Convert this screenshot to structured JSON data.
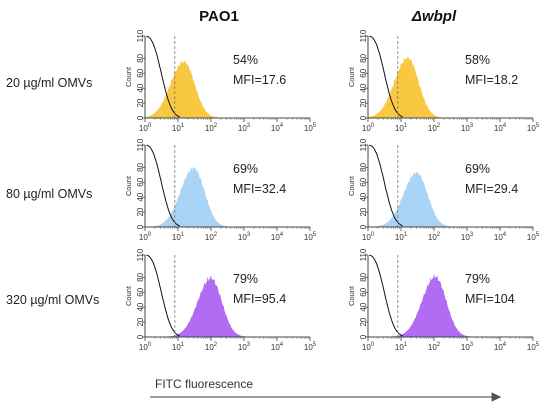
{
  "figure": {
    "columns": [
      "PAO1",
      "Δwbpl"
    ],
    "rows": [
      "20 µg/ml OMVs",
      "80 µg/ml OMVs",
      "320 µg/ml OMVs"
    ],
    "x_axis_label": "FITC fluorescence",
    "y_axis_title": "Count"
  },
  "chart_data": [
    {
      "type": "area",
      "column": "PAO1",
      "row": "20 µg/ml OMVs",
      "annotation_percent": "54%",
      "annotation_mfi": "MFI=17.6",
      "x_scale": "log",
      "xlim": [
        1,
        100000
      ],
      "ylim": [
        0,
        110
      ],
      "yticks": [
        0,
        20,
        40,
        60,
        80,
        110
      ],
      "series": [
        {
          "color": "#f9c842",
          "peak_x": 15,
          "peak_y": 75
        }
      ],
      "gate_x": 8
    },
    {
      "type": "area",
      "column": "Δwbpl",
      "row": "20 µg/ml OMVs",
      "annotation_percent": "58%",
      "annotation_mfi": "MFI=18.2",
      "x_scale": "log",
      "xlim": [
        1,
        100000
      ],
      "ylim": [
        0,
        110
      ],
      "yticks": [
        0,
        20,
        40,
        60,
        80,
        110
      ],
      "series": [
        {
          "color": "#f9c842",
          "peak_x": 16,
          "peak_y": 80
        }
      ],
      "gate_x": 8
    },
    {
      "type": "area",
      "column": "PAO1",
      "row": "80 µg/ml OMVs",
      "annotation_percent": "69%",
      "annotation_mfi": "MFI=32.4",
      "x_scale": "log",
      "xlim": [
        1,
        100000
      ],
      "ylim": [
        0,
        110
      ],
      "yticks": [
        0,
        20,
        40,
        60,
        80,
        110
      ],
      "series": [
        {
          "color": "#a9d4f5",
          "peak_x": 30,
          "peak_y": 78
        }
      ],
      "gate_x": 8
    },
    {
      "type": "area",
      "column": "Δwbpl",
      "row": "80 µg/ml OMVs",
      "annotation_percent": "69%",
      "annotation_mfi": "MFI=29.4",
      "x_scale": "log",
      "xlim": [
        1,
        100000
      ],
      "ylim": [
        0,
        110
      ],
      "yticks": [
        0,
        20,
        40,
        60,
        80,
        110
      ],
      "series": [
        {
          "color": "#a9d4f5",
          "peak_x": 30,
          "peak_y": 72
        }
      ],
      "gate_x": 8
    },
    {
      "type": "area",
      "column": "PAO1",
      "row": "320 µg/ml OMVs",
      "annotation_percent": "79%",
      "annotation_mfi": "MFI=95.4",
      "x_scale": "log",
      "xlim": [
        1,
        100000
      ],
      "ylim": [
        0,
        110
      ],
      "yticks": [
        0,
        20,
        40,
        60,
        80,
        110
      ],
      "series": [
        {
          "color": "#b06cf2",
          "peak_x": 100,
          "peak_y": 78
        }
      ],
      "gate_x": 8
    },
    {
      "type": "area",
      "column": "Δwbpl",
      "row": "320 µg/ml OMVs",
      "annotation_percent": "79%",
      "annotation_mfi": "MFI=104",
      "x_scale": "log",
      "xlim": [
        1,
        100000
      ],
      "ylim": [
        0,
        110
      ],
      "yticks": [
        0,
        20,
        40,
        60,
        80,
        110
      ],
      "series": [
        {
          "color": "#b06cf2",
          "peak_x": 110,
          "peak_y": 80
        }
      ],
      "gate_x": 8
    }
  ]
}
